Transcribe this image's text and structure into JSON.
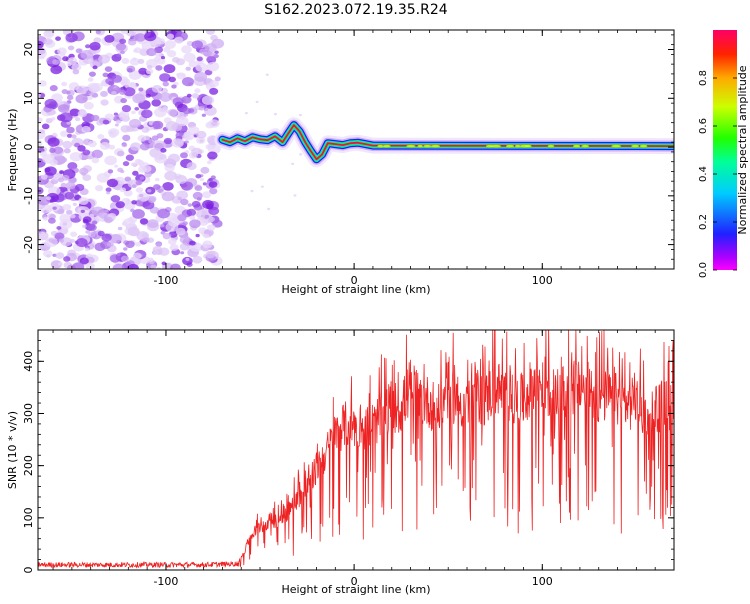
{
  "title": "S162.2023.072.19.35.R24",
  "colors": {
    "snr_line": "#ee2222",
    "noise": "#9a3cf0",
    "signal_core": "#ee1144",
    "colorbar": [
      "#ff0000",
      "#ffff00",
      "#00ff00",
      "#00ffff",
      "#0000ff",
      "#ff00ff"
    ]
  },
  "chart_data": [
    {
      "type": "heatmap",
      "name": "spectrogram",
      "xlabel": "Height of straight line (km)",
      "ylabel": "Frequency (Hz)",
      "xlim": [
        -168,
        170
      ],
      "ylim": [
        -25,
        24
      ],
      "xticks": [
        -100,
        0,
        100
      ],
      "yticks": [
        -20,
        -10,
        0,
        10,
        20
      ],
      "noise_region_x": [
        -168,
        -70
      ],
      "signal_ridge": {
        "x": [
          -70,
          -66,
          -62,
          -58,
          -54,
          -50,
          -46,
          -42,
          -38,
          -35,
          -32,
          -29,
          -26,
          -23,
          -20,
          -17,
          -14,
          -10,
          -6,
          -2,
          2,
          6,
          10,
          170
        ],
        "freq": [
          1.5,
          1.0,
          1.8,
          1.2,
          2.0,
          1.6,
          1.4,
          2.2,
          1.0,
          2.8,
          4.5,
          3.2,
          1.0,
          -0.8,
          -2.5,
          -1.5,
          0.8,
          0.6,
          0.4,
          0.8,
          0.9,
          0.6,
          0.3,
          0.2
        ]
      },
      "colorbar": {
        "label": "Normalized spectral amplitude",
        "range": [
          0,
          1
        ],
        "ticks": [
          0.0,
          0.2,
          0.4,
          0.6,
          0.8
        ]
      }
    },
    {
      "type": "line",
      "name": "snr",
      "xlabel": "Height of straight line (km)",
      "ylabel": "SNR (10 * v/v)",
      "xlim": [
        -168,
        170
      ],
      "ylim": [
        0,
        460
      ],
      "xticks": [
        -100,
        0,
        100
      ],
      "yticks": [
        0,
        100,
        200,
        300,
        400
      ],
      "series": [
        {
          "x": [
            -168,
            -140,
            -110,
            -80,
            -62,
            -58,
            -55,
            -50,
            -45,
            -40,
            -35,
            -30,
            -25,
            -20,
            -15,
            -10,
            -5,
            0,
            5,
            10,
            15,
            20,
            25,
            30,
            35,
            40,
            45,
            50,
            55,
            60,
            65,
            70,
            75,
            80,
            85,
            90,
            95,
            100,
            105,
            110,
            115,
            120,
            125,
            130,
            135,
            140,
            145,
            150,
            155,
            160,
            165,
            170
          ],
          "y": [
            10,
            10,
            10,
            10,
            12,
            40,
            70,
            90,
            100,
            105,
            120,
            150,
            170,
            210,
            240,
            280,
            300,
            300,
            290,
            300,
            320,
            340,
            330,
            380,
            355,
            345,
            330,
            370,
            350,
            340,
            360,
            350,
            380,
            360,
            345,
            350,
            380,
            390,
            360,
            360,
            380,
            370,
            370,
            355,
            360,
            350,
            340,
            345,
            320,
            335,
            340,
            340
          ]
        }
      ]
    }
  ]
}
